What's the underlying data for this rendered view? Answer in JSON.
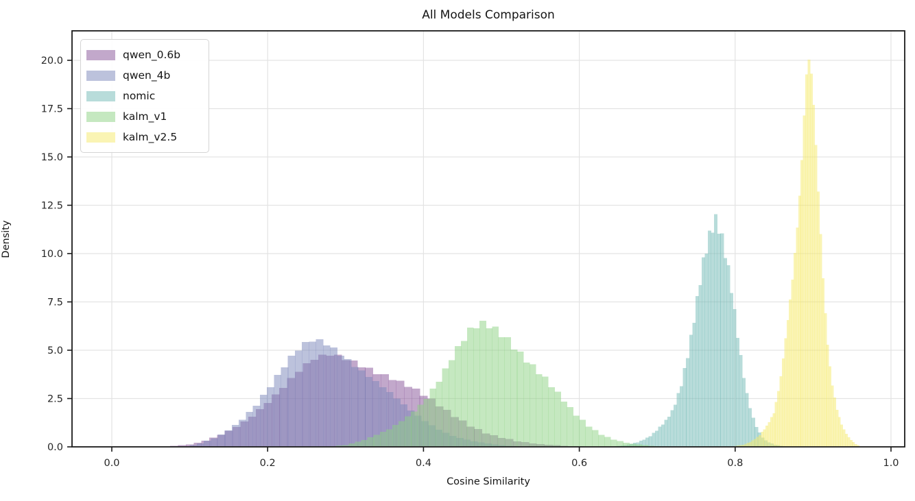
{
  "chart_data": {
    "type": "histogram",
    "title": "All Models Comparison",
    "xlabel": "Cosine Similarity",
    "ylabel": "Density",
    "x_ticks": [
      0.0,
      0.2,
      0.4,
      0.6,
      0.8,
      1.0
    ],
    "x_tick_labels": [
      "0.0",
      "0.2",
      "0.4",
      "0.6",
      "0.8",
      "1.0"
    ],
    "y_ticks": [
      0.0,
      2.5,
      5.0,
      7.5,
      10.0,
      12.5,
      15.0,
      17.5,
      20.0
    ],
    "y_tick_labels": [
      "0.0",
      "2.5",
      "5.0",
      "7.5",
      "10.0",
      "12.5",
      "15.0",
      "17.5",
      "20.0"
    ],
    "xlim": [
      -0.051,
      1.018
    ],
    "ylim": [
      0,
      21.5
    ],
    "grid": true,
    "grid_color": "#e3e3e3",
    "spine_color": "#1a1a1a",
    "text_color": "#262626",
    "legend_position": "upper left",
    "fill_alpha": 0.5,
    "series": [
      {
        "name": "qwen_0.6b",
        "color": "#855197",
        "bin_width": 0.01,
        "peak_x": 0.28,
        "peak_density": 4.6,
        "range": [
          0.075,
          0.61
        ],
        "envelope": [
          [
            0.075,
            0.03
          ],
          [
            0.1,
            0.12
          ],
          [
            0.12,
            0.3
          ],
          [
            0.14,
            0.6
          ],
          [
            0.16,
            1.05
          ],
          [
            0.18,
            1.65
          ],
          [
            0.2,
            2.4
          ],
          [
            0.22,
            3.15
          ],
          [
            0.24,
            3.85
          ],
          [
            0.26,
            4.35
          ],
          [
            0.28,
            4.6
          ],
          [
            0.3,
            4.55
          ],
          [
            0.32,
            4.35
          ],
          [
            0.34,
            4.05
          ],
          [
            0.36,
            3.65
          ],
          [
            0.38,
            3.15
          ],
          [
            0.4,
            2.6
          ],
          [
            0.42,
            2.05
          ],
          [
            0.44,
            1.55
          ],
          [
            0.46,
            1.1
          ],
          [
            0.48,
            0.75
          ],
          [
            0.5,
            0.5
          ],
          [
            0.52,
            0.3
          ],
          [
            0.54,
            0.18
          ],
          [
            0.56,
            0.1
          ],
          [
            0.58,
            0.05
          ],
          [
            0.61,
            0.02
          ]
        ]
      },
      {
        "name": "qwen_4b",
        "color": "#7985b9",
        "bin_width": 0.009,
        "peak_x": 0.265,
        "peak_density": 5.4,
        "range": [
          0.1,
          0.52
        ],
        "envelope": [
          [
            0.1,
            0.04
          ],
          [
            0.12,
            0.25
          ],
          [
            0.14,
            0.6
          ],
          [
            0.16,
            1.2
          ],
          [
            0.18,
            2.0
          ],
          [
            0.2,
            3.0
          ],
          [
            0.22,
            4.0
          ],
          [
            0.24,
            4.85
          ],
          [
            0.255,
            5.3
          ],
          [
            0.265,
            5.4
          ],
          [
            0.28,
            5.3
          ],
          [
            0.3,
            4.8
          ],
          [
            0.32,
            4.1
          ],
          [
            0.34,
            3.35
          ],
          [
            0.36,
            2.6
          ],
          [
            0.38,
            1.9
          ],
          [
            0.4,
            1.35
          ],
          [
            0.42,
            0.9
          ],
          [
            0.44,
            0.55
          ],
          [
            0.46,
            0.33
          ],
          [
            0.48,
            0.18
          ],
          [
            0.5,
            0.08
          ],
          [
            0.52,
            0.03
          ]
        ]
      },
      {
        "name": "nomic",
        "color": "#71b9b5",
        "bin_width": 0.004,
        "peak_x": 0.775,
        "peak_density": 12.1,
        "range": [
          0.645,
          0.86
        ],
        "envelope": [
          [
            0.645,
            0.03
          ],
          [
            0.66,
            0.1
          ],
          [
            0.675,
            0.25
          ],
          [
            0.69,
            0.5
          ],
          [
            0.7,
            0.85
          ],
          [
            0.71,
            1.3
          ],
          [
            0.72,
            2.0
          ],
          [
            0.73,
            3.2
          ],
          [
            0.74,
            4.9
          ],
          [
            0.75,
            7.0
          ],
          [
            0.76,
            9.4
          ],
          [
            0.77,
            11.4
          ],
          [
            0.775,
            12.1
          ],
          [
            0.78,
            11.8
          ],
          [
            0.785,
            11.0
          ],
          [
            0.79,
            9.8
          ],
          [
            0.795,
            8.3
          ],
          [
            0.8,
            6.6
          ],
          [
            0.805,
            5.0
          ],
          [
            0.81,
            3.7
          ],
          [
            0.815,
            2.6
          ],
          [
            0.82,
            1.8
          ],
          [
            0.825,
            1.2
          ],
          [
            0.83,
            0.8
          ],
          [
            0.835,
            0.5
          ],
          [
            0.84,
            0.3
          ],
          [
            0.85,
            0.12
          ],
          [
            0.86,
            0.04
          ]
        ]
      },
      {
        "name": "kalm_v1",
        "color": "#8bd181",
        "bin_width": 0.008,
        "peak_x": 0.475,
        "peak_density": 6.1,
        "range": [
          0.28,
          0.71
        ],
        "envelope": [
          [
            0.28,
            0.03
          ],
          [
            0.3,
            0.1
          ],
          [
            0.32,
            0.3
          ],
          [
            0.34,
            0.6
          ],
          [
            0.36,
            0.95
          ],
          [
            0.38,
            1.55
          ],
          [
            0.4,
            2.4
          ],
          [
            0.42,
            3.6
          ],
          [
            0.44,
            4.9
          ],
          [
            0.46,
            5.8
          ],
          [
            0.475,
            6.1
          ],
          [
            0.49,
            6.0
          ],
          [
            0.51,
            5.6
          ],
          [
            0.53,
            4.8
          ],
          [
            0.55,
            3.9
          ],
          [
            0.57,
            2.8
          ],
          [
            0.59,
            1.8
          ],
          [
            0.61,
            1.1
          ],
          [
            0.63,
            0.6
          ],
          [
            0.65,
            0.32
          ],
          [
            0.67,
            0.15
          ],
          [
            0.69,
            0.06
          ],
          [
            0.71,
            0.02
          ]
        ]
      },
      {
        "name": "kalm_v2.5",
        "color": "#f5e969",
        "bin_width": 0.003,
        "peak_x": 0.892,
        "peak_density": 20.4,
        "range": [
          0.8,
          0.96
        ],
        "envelope": [
          [
            0.8,
            0.04
          ],
          [
            0.81,
            0.1
          ],
          [
            0.82,
            0.25
          ],
          [
            0.83,
            0.55
          ],
          [
            0.84,
            1.1
          ],
          [
            0.85,
            1.8
          ],
          [
            0.858,
            3.3
          ],
          [
            0.865,
            5.5
          ],
          [
            0.872,
            8.0
          ],
          [
            0.878,
            11.0
          ],
          [
            0.884,
            14.5
          ],
          [
            0.888,
            17.5
          ],
          [
            0.891,
            19.5
          ],
          [
            0.893,
            20.4
          ],
          [
            0.896,
            19.8
          ],
          [
            0.9,
            17.5
          ],
          [
            0.904,
            14.5
          ],
          [
            0.908,
            11.5
          ],
          [
            0.912,
            8.8
          ],
          [
            0.916,
            6.5
          ],
          [
            0.92,
            4.7
          ],
          [
            0.925,
            3.2
          ],
          [
            0.93,
            2.1
          ],
          [
            0.935,
            1.35
          ],
          [
            0.94,
            0.85
          ],
          [
            0.945,
            0.5
          ],
          [
            0.95,
            0.27
          ],
          [
            0.955,
            0.12
          ],
          [
            0.96,
            0.04
          ]
        ]
      }
    ]
  }
}
